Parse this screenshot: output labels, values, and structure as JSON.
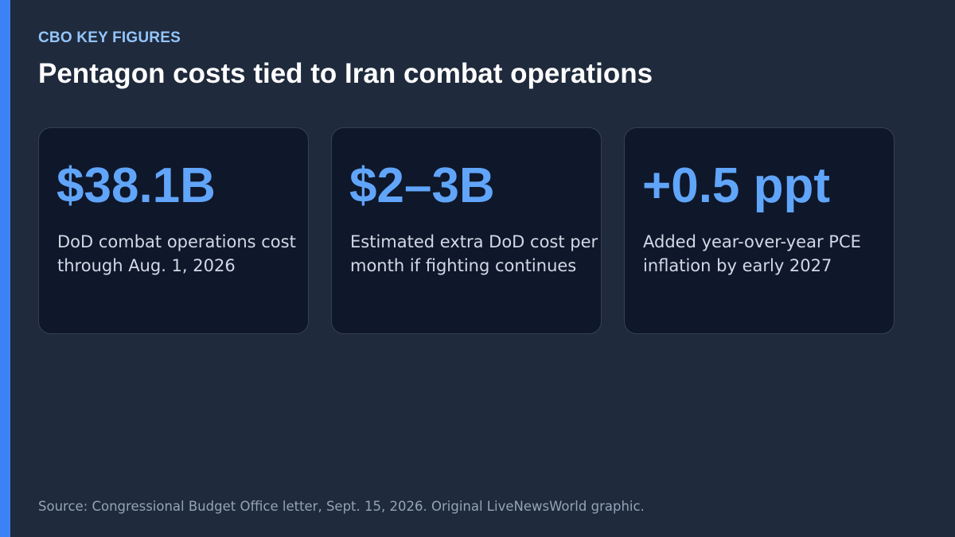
{
  "header": {
    "kicker": "CBO KEY FIGURES",
    "title": "Pentagon costs tied to Iran combat operations"
  },
  "cards": [
    {
      "value": "$38.1B",
      "description": "DoD combat operations cost through Aug. 1, 2026"
    },
    {
      "value": "$2–3B",
      "description": "Estimated extra DoD cost per month if fighting continues"
    },
    {
      "value": "+0.5 ppt",
      "description": "Added year-over-year PCE inflation by early 2027"
    }
  ],
  "footer": {
    "source": "Source: Congressional Budget Office letter, Sept. 15, 2026. Original LiveNewsWorld graphic."
  },
  "colors": {
    "background": "#1f2a3c",
    "accent_bar": "#3b82f6",
    "kicker": "#93c5fd",
    "value": "#60a5fa",
    "card_background": "#0f172a"
  }
}
